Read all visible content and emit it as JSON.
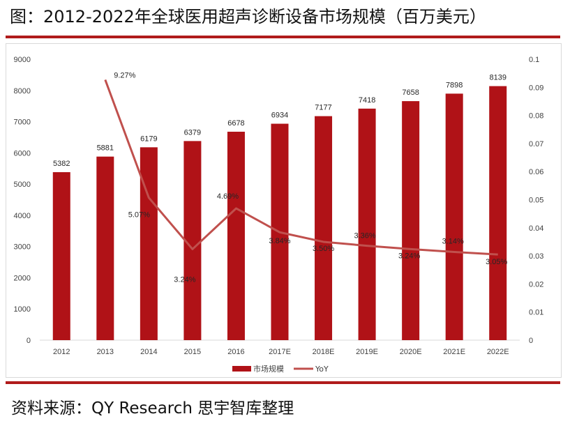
{
  "title": "图：2012-2022年全球医用超声诊断设备市场规模（百万美元）",
  "source": "资料来源：QY Research  思宇智库整理",
  "colors": {
    "bar": "#b01217",
    "line": "#c0504d",
    "rule": "#b01b1b"
  },
  "chart_data": {
    "type": "bar",
    "categories": [
      "2012",
      "2013",
      "2014",
      "2015",
      "2016",
      "2017E",
      "2018E",
      "2019E",
      "2020E",
      "2021E",
      "2022E"
    ],
    "series": [
      {
        "name": "市场规模",
        "type": "bar",
        "axis": "left",
        "values": [
          5382,
          5881,
          6179,
          6379,
          6678,
          6934,
          7177,
          7418,
          7658,
          7898,
          8139
        ],
        "labels": [
          "5382",
          "5881",
          "6179",
          "6379",
          "6678",
          "6934",
          "7177",
          "7418",
          "7658",
          "7898",
          "8139"
        ]
      },
      {
        "name": "YoY",
        "type": "line",
        "axis": "right",
        "values": [
          null,
          0.0927,
          0.0507,
          0.0324,
          0.0469,
          0.0384,
          0.035,
          0.0336,
          0.0324,
          0.0314,
          0.0305
        ],
        "labels": [
          "",
          "9.27%",
          "5.07%",
          "3.24%",
          "4.69%",
          "3.84%",
          "3.50%",
          "3.36%",
          "3.24%",
          "3.14%",
          "3.05%"
        ]
      }
    ],
    "ylim": [
      0,
      9000
    ],
    "y_ticks": [
      "0",
      "1000",
      "2000",
      "3000",
      "4000",
      "5000",
      "6000",
      "7000",
      "8000",
      "9000"
    ],
    "y2lim": [
      0,
      0.1
    ],
    "y2_ticks": [
      "0",
      "0.01",
      "0.02",
      "0.03",
      "0.04",
      "0.05",
      "0.06",
      "0.07",
      "0.08",
      "0.09",
      "0.1"
    ],
    "legend_position": "bottom",
    "grid": false
  }
}
